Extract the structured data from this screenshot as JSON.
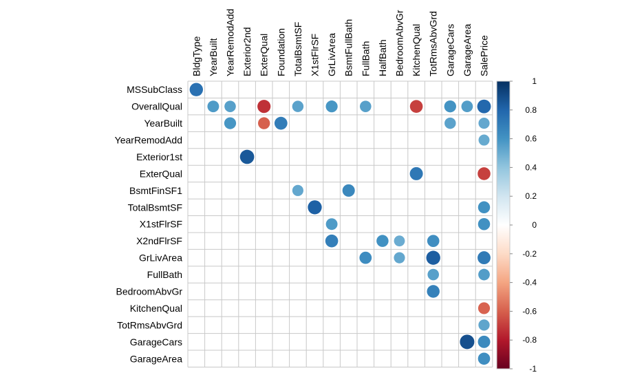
{
  "chart_data": {
    "type": "heatmap",
    "style": "correlation-circle",
    "rows": [
      "MSSubClass",
      "OverallQual",
      "YearBuilt",
      "YearRemodAdd",
      "Exterior1st",
      "ExterQual",
      "BsmtFinSF1",
      "TotalBsmtSF",
      "X1stFlrSF",
      "X2ndFlrSF",
      "GrLivArea",
      "FullBath",
      "BedroomAbvGr",
      "KitchenQual",
      "TotRmsAbvGrd",
      "GarageCars",
      "GarageArea"
    ],
    "columns": [
      "BldgType",
      "YearBuilt",
      "YearRemodAdd",
      "Exterior2nd",
      "ExterQual",
      "Foundation",
      "TotalBsmtSF",
      "X1stFlrSF",
      "GrLivArea",
      "BsmtFullBath",
      "FullBath",
      "HalfBath",
      "BedroomAbvGr",
      "KitchenQual",
      "TotRmsAbvGrd",
      "GarageCars",
      "GarageArea",
      "SalePrice"
    ],
    "cells": [
      {
        "row": "MSSubClass",
        "col": "BldgType",
        "value": 0.75
      },
      {
        "row": "OverallQual",
        "col": "YearBuilt",
        "value": 0.57
      },
      {
        "row": "OverallQual",
        "col": "YearRemodAdd",
        "value": 0.55
      },
      {
        "row": "OverallQual",
        "col": "ExterQual",
        "value": -0.73
      },
      {
        "row": "OverallQual",
        "col": "TotalBsmtSF",
        "value": 0.54
      },
      {
        "row": "OverallQual",
        "col": "GrLivArea",
        "value": 0.59
      },
      {
        "row": "OverallQual",
        "col": "FullBath",
        "value": 0.55
      },
      {
        "row": "OverallQual",
        "col": "KitchenQual",
        "value": -0.69
      },
      {
        "row": "OverallQual",
        "col": "GarageCars",
        "value": 0.6
      },
      {
        "row": "OverallQual",
        "col": "GarageArea",
        "value": 0.56
      },
      {
        "row": "OverallQual",
        "col": "SalePrice",
        "value": 0.79
      },
      {
        "row": "YearBuilt",
        "col": "YearRemodAdd",
        "value": 0.59
      },
      {
        "row": "YearBuilt",
        "col": "ExterQual",
        "value": -0.6
      },
      {
        "row": "YearBuilt",
        "col": "Foundation",
        "value": 0.7
      },
      {
        "row": "YearBuilt",
        "col": "GarageCars",
        "value": 0.54
      },
      {
        "row": "YearBuilt",
        "col": "SalePrice",
        "value": 0.52
      },
      {
        "row": "YearRemodAdd",
        "col": "SalePrice",
        "value": 0.51
      },
      {
        "row": "Exterior1st",
        "col": "Exterior2nd",
        "value": 0.85
      },
      {
        "row": "ExterQual",
        "col": "KitchenQual",
        "value": 0.72
      },
      {
        "row": "ExterQual",
        "col": "SalePrice",
        "value": -0.69
      },
      {
        "row": "BsmtFinSF1",
        "col": "TotalBsmtSF",
        "value": 0.52
      },
      {
        "row": "BsmtFinSF1",
        "col": "BsmtFullBath",
        "value": 0.65
      },
      {
        "row": "TotalBsmtSF",
        "col": "X1stFlrSF",
        "value": 0.82
      },
      {
        "row": "TotalBsmtSF",
        "col": "SalePrice",
        "value": 0.61
      },
      {
        "row": "X1stFlrSF",
        "col": "GrLivArea",
        "value": 0.57
      },
      {
        "row": "X1stFlrSF",
        "col": "SalePrice",
        "value": 0.61
      },
      {
        "row": "X2ndFlrSF",
        "col": "GrLivArea",
        "value": 0.69
      },
      {
        "row": "X2ndFlrSF",
        "col": "HalfBath",
        "value": 0.61
      },
      {
        "row": "X2ndFlrSF",
        "col": "BedroomAbvGr",
        "value": 0.5
      },
      {
        "row": "X2ndFlrSF",
        "col": "TotRmsAbvGrd",
        "value": 0.62
      },
      {
        "row": "GrLivArea",
        "col": "FullBath",
        "value": 0.63
      },
      {
        "row": "GrLivArea",
        "col": "BedroomAbvGr",
        "value": 0.52
      },
      {
        "row": "GrLivArea",
        "col": "TotRmsAbvGrd",
        "value": 0.83
      },
      {
        "row": "GrLivArea",
        "col": "SalePrice",
        "value": 0.71
      },
      {
        "row": "FullBath",
        "col": "TotRmsAbvGrd",
        "value": 0.55
      },
      {
        "row": "FullBath",
        "col": "SalePrice",
        "value": 0.56
      },
      {
        "row": "BedroomAbvGr",
        "col": "TotRmsAbvGrd",
        "value": 0.68
      },
      {
        "row": "KitchenQual",
        "col": "SalePrice",
        "value": -0.59
      },
      {
        "row": "TotRmsAbvGrd",
        "col": "SalePrice",
        "value": 0.53
      },
      {
        "row": "GarageCars",
        "col": "GarageArea",
        "value": 0.88
      },
      {
        "row": "GarageCars",
        "col": "SalePrice",
        "value": 0.64
      },
      {
        "row": "GarageArea",
        "col": "SalePrice",
        "value": 0.62
      }
    ],
    "colorbar": {
      "range": [
        -1,
        1
      ],
      "ticks": [
        1,
        0.8,
        0.6,
        0.4,
        0.2,
        0,
        -0.2,
        -0.4,
        -0.6,
        -0.8,
        -1
      ],
      "tick_labels": [
        "1",
        "0.8",
        "0.6",
        "0.4",
        "0.2",
        "0",
        "-0.2",
        "-0.4",
        "-0.6",
        "-0.8",
        "-1"
      ],
      "colors": [
        "#67001F",
        "#B2182B",
        "#D6604D",
        "#F4A582",
        "#FDDBC7",
        "#FFFFFF",
        "#D1E5F0",
        "#92C5DE",
        "#4393C3",
        "#2166AC",
        "#053061"
      ]
    },
    "grid": true,
    "legend_position": "right"
  }
}
